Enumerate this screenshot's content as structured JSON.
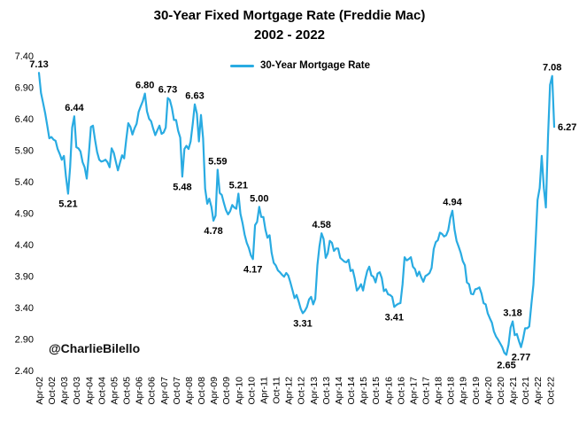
{
  "title": {
    "line1": "30-Year Fixed Mortgage Rate (Freddie Mac)",
    "line2": "2002 - 2022"
  },
  "legend": {
    "label": "30-Year Mortgage Rate"
  },
  "watermark": "@CharlieBilello",
  "colors": {
    "line": "#29ABE2",
    "text": "#000000",
    "background": "#ffffff"
  },
  "chart_data": {
    "type": "line",
    "title": "30-Year Fixed Mortgage Rate (Freddie Mac) 2002 - 2022",
    "xlabel": "",
    "ylabel": "",
    "ylim": [
      2.4,
      7.4
    ],
    "grid": false,
    "legend_position": "top-center",
    "y_ticks": [
      2.4,
      2.9,
      3.4,
      3.9,
      4.4,
      4.9,
      5.4,
      5.9,
      6.4,
      6.9,
      7.4
    ],
    "x_tick_labels": [
      "Apr-02",
      "Oct-02",
      "Apr-03",
      "Oct-03",
      "Apr-04",
      "Oct-04",
      "Apr-05",
      "Oct-05",
      "Apr-06",
      "Oct-06",
      "Apr-07",
      "Oct-07",
      "Apr-08",
      "Oct-08",
      "Apr-09",
      "Oct-09",
      "Apr-10",
      "Oct-10",
      "Apr-11",
      "Oct-11",
      "Apr-12",
      "Oct-12",
      "Apr-13",
      "Oct-13",
      "Apr-14",
      "Oct-14",
      "Apr-15",
      "Oct-15",
      "Apr-16",
      "Oct-16",
      "Apr-17",
      "Oct-17",
      "Apr-18",
      "Oct-18",
      "Apr-19",
      "Oct-19",
      "Apr-20",
      "Oct-20",
      "Apr-21",
      "Oct-21",
      "Apr-22",
      "Oct-22"
    ],
    "x_tick_every_n_months": 6,
    "start_month": "2002-04",
    "frequency": "monthly",
    "series": [
      {
        "name": "30-Year Mortgage Rate",
        "values": [
          7.13,
          6.81,
          6.65,
          6.49,
          6.29,
          6.09,
          6.11,
          6.07,
          6.05,
          5.92,
          5.84,
          5.75,
          5.81,
          5.48,
          5.21,
          5.63,
          6.26,
          6.44,
          5.95,
          5.93,
          5.88,
          5.71,
          5.63,
          5.45,
          5.83,
          6.27,
          6.29,
          6.06,
          5.87,
          5.75,
          5.72,
          5.73,
          5.75,
          5.71,
          5.63,
          5.93,
          5.86,
          5.72,
          5.58,
          5.7,
          5.82,
          5.77,
          6.07,
          6.33,
          6.27,
          6.15,
          6.25,
          6.32,
          6.51,
          6.6,
          6.68,
          6.8,
          6.52,
          6.4,
          6.36,
          6.24,
          6.14,
          6.22,
          6.29,
          6.16,
          6.18,
          6.26,
          6.73,
          6.7,
          6.57,
          6.38,
          6.38,
          6.21,
          6.1,
          5.48,
          5.92,
          5.97,
          5.92,
          6.04,
          6.32,
          6.63,
          6.48,
          6.04,
          6.46,
          6.09,
          5.29,
          5.05,
          5.13,
          5.0,
          4.78,
          4.86,
          5.59,
          5.22,
          5.19,
          5.06,
          4.95,
          4.88,
          4.93,
          5.03,
          4.99,
          4.97,
          5.21,
          4.89,
          4.74,
          4.56,
          4.43,
          4.35,
          4.23,
          4.17,
          4.71,
          4.76,
          5.0,
          4.84,
          4.84,
          4.64,
          4.51,
          4.55,
          4.27,
          4.11,
          4.07,
          3.99,
          3.96,
          3.92,
          3.89,
          3.95,
          3.91,
          3.8,
          3.68,
          3.55,
          3.6,
          3.5,
          3.38,
          3.31,
          3.35,
          3.41,
          3.53,
          3.57,
          3.45,
          3.54,
          4.07,
          4.37,
          4.58,
          4.49,
          4.19,
          4.26,
          4.46,
          4.43,
          4.3,
          4.34,
          4.34,
          4.19,
          4.16,
          4.13,
          4.12,
          4.16,
          3.98,
          4.0,
          3.86,
          3.67,
          3.71,
          3.77,
          3.67,
          3.84,
          3.98,
          4.05,
          3.91,
          3.89,
          3.8,
          3.94,
          3.96,
          3.87,
          3.66,
          3.69,
          3.61,
          3.6,
          3.57,
          3.41,
          3.44,
          3.46,
          3.47,
          3.77,
          4.2,
          4.15,
          4.17,
          4.2,
          4.05,
          4.01,
          3.9,
          3.97,
          3.88,
          3.81,
          3.9,
          3.92,
          3.95,
          4.03,
          4.33,
          4.44,
          4.47,
          4.59,
          4.57,
          4.53,
          4.55,
          4.63,
          4.83,
          4.94,
          4.64,
          4.46,
          4.37,
          4.27,
          4.14,
          4.07,
          3.8,
          3.77,
          3.62,
          3.61,
          3.69,
          3.7,
          3.72,
          3.62,
          3.47,
          3.45,
          3.31,
          3.23,
          3.16,
          3.02,
          2.94,
          2.89,
          2.83,
          2.77,
          2.68,
          2.65,
          2.81,
          3.08,
          3.18,
          2.96,
          2.98,
          2.87,
          2.77,
          2.9,
          3.07,
          3.07,
          3.1,
          3.45,
          3.76,
          4.42,
          5.11,
          5.3,
          5.81,
          5.3,
          4.99,
          6.11,
          6.94,
          7.08,
          6.27
        ]
      }
    ],
    "annotations": [
      {
        "label": "7.13",
        "month": "2002-04",
        "value": 7.13,
        "pos": "above"
      },
      {
        "label": "6.44",
        "month": "2003-09",
        "value": 6.44,
        "pos": "above"
      },
      {
        "label": "5.21",
        "month": "2003-06",
        "value": 5.21,
        "pos": "below"
      },
      {
        "label": "6.80",
        "month": "2006-07",
        "value": 6.8,
        "pos": "above"
      },
      {
        "label": "6.73",
        "month": "2007-06",
        "value": 6.73,
        "pos": "above"
      },
      {
        "label": "5.48",
        "month": "2008-01",
        "value": 5.48,
        "pos": "below"
      },
      {
        "label": "6.63",
        "month": "2008-07",
        "value": 6.63,
        "pos": "above"
      },
      {
        "label": "4.78",
        "month": "2009-04",
        "value": 4.78,
        "pos": "below"
      },
      {
        "label": "5.59",
        "month": "2009-06",
        "value": 5.59,
        "pos": "above"
      },
      {
        "label": "5.21",
        "month": "2010-04",
        "value": 5.21,
        "pos": "above"
      },
      {
        "label": "4.17",
        "month": "2010-11",
        "value": 4.17,
        "pos": "below"
      },
      {
        "label": "5.00",
        "month": "2011-02",
        "value": 5.0,
        "pos": "above"
      },
      {
        "label": "3.31",
        "month": "2012-11",
        "value": 3.31,
        "pos": "below"
      },
      {
        "label": "4.58",
        "month": "2013-08",
        "value": 4.58,
        "pos": "above"
      },
      {
        "label": "3.41",
        "month": "2016-07",
        "value": 3.41,
        "pos": "below"
      },
      {
        "label": "4.94",
        "month": "2018-11",
        "value": 4.94,
        "pos": "above"
      },
      {
        "label": "2.65",
        "month": "2021-01",
        "value": 2.65,
        "pos": "below"
      },
      {
        "label": "3.18",
        "month": "2021-04",
        "value": 3.18,
        "pos": "above"
      },
      {
        "label": "2.77",
        "month": "2021-08",
        "value": 2.77,
        "pos": "below"
      },
      {
        "label": "7.08",
        "month": "2022-11",
        "value": 7.08,
        "pos": "above"
      },
      {
        "label": "6.27",
        "month": "2022-12",
        "value": 6.27,
        "pos": "right"
      }
    ]
  }
}
